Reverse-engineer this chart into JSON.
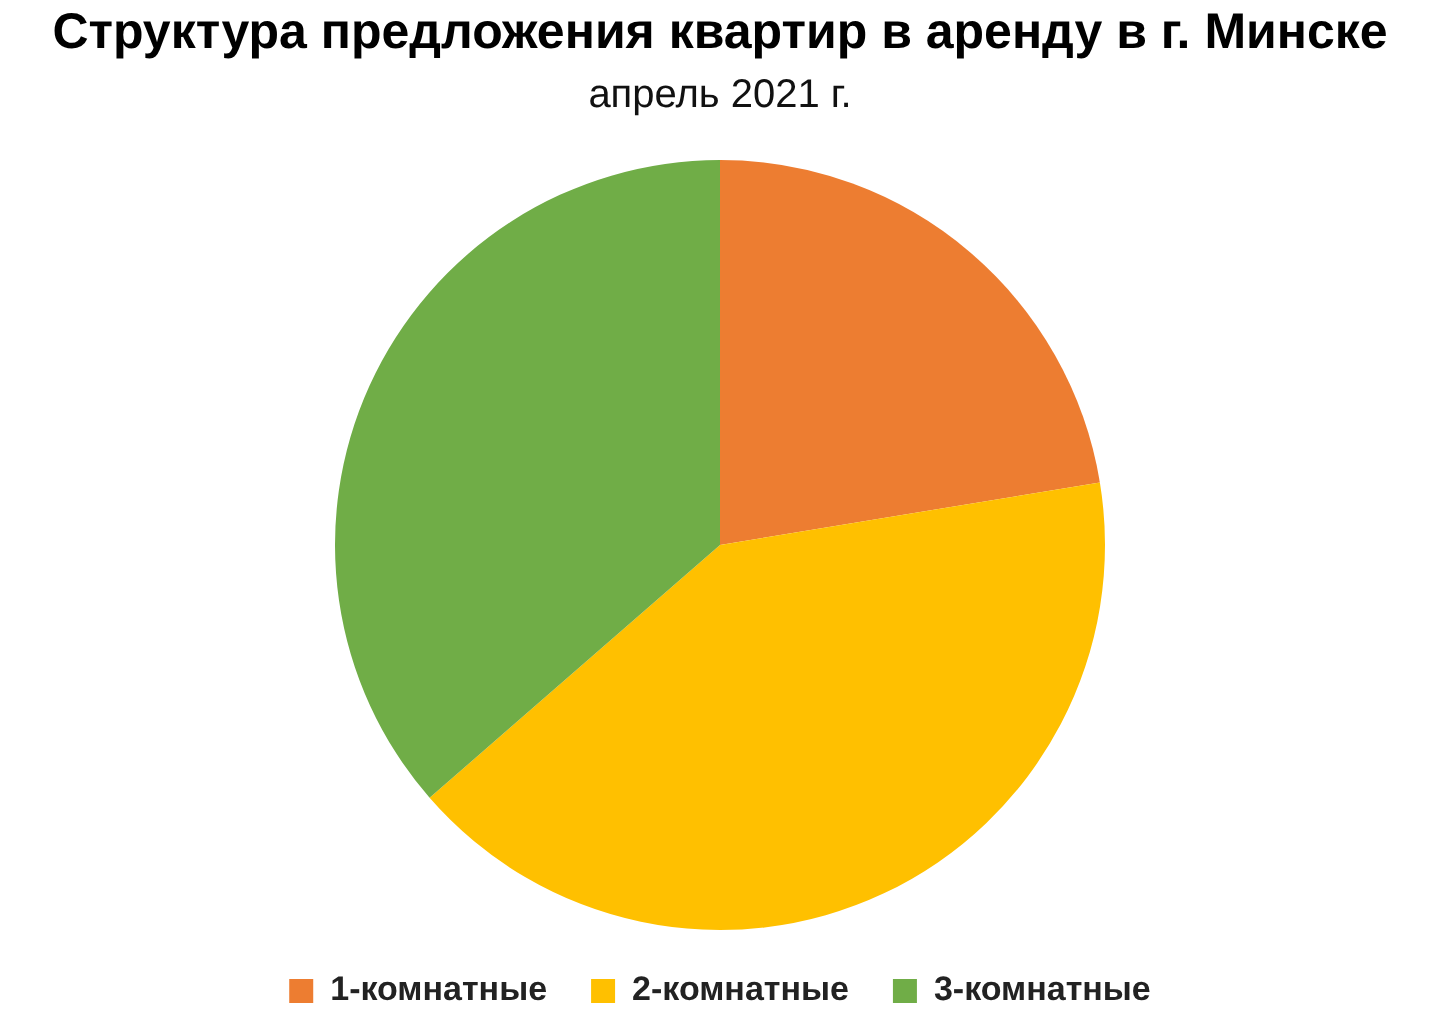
{
  "chart_data": {
    "type": "pie",
    "title": "Структура предложения квартир в аренду в г. Минске",
    "subtitle": "апрель 2021 г.",
    "categories": [
      "1-комнатные",
      "2-комнатные",
      "3-комнатные"
    ],
    "values": [
      22.4,
      41.2,
      36.4
    ],
    "colors": [
      "#ed7d31",
      "#ffc000",
      "#70ad47"
    ],
    "legend": "bottom"
  }
}
